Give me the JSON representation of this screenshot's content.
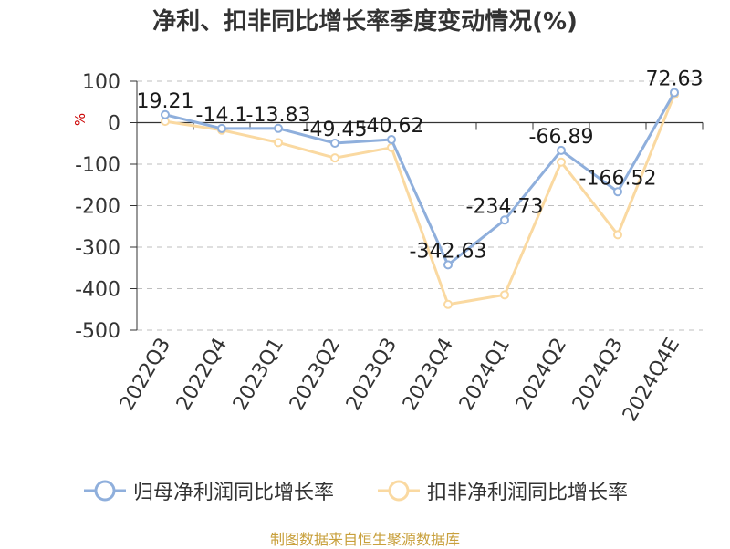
{
  "title": "净利、扣非同比增长率季度变动情况(%)",
  "source_text": "制图数据来自恒生聚源数据库",
  "colors": {
    "series1": "#8fafdc",
    "series2": "#fad9a1",
    "grid": "#bfbfbf",
    "axis": "#333333",
    "unit": "#cc0000"
  },
  "chart_data": {
    "type": "line",
    "title": "净利、扣非同比增长率季度变动情况(%)",
    "ylabel": "%",
    "xlabel": "",
    "ylim": [
      -500,
      100
    ],
    "yticks": [
      100,
      0,
      -100,
      -200,
      -300,
      -400,
      -500
    ],
    "grid": true,
    "legend_position": "bottom",
    "categories": [
      "2022Q3",
      "2022Q4",
      "2023Q1",
      "2023Q2",
      "2023Q3",
      "2023Q4",
      "2024Q1",
      "2024Q2",
      "2024Q3",
      "2024Q4E"
    ],
    "series": [
      {
        "name": "归母净利润同比增长率",
        "values": [
          19.21,
          -14.1,
          -13.83,
          -49.45,
          -40.62,
          -342.63,
          -234.73,
          -66.89,
          -166.52,
          72.63
        ],
        "labels": [
          "19.21",
          "-14.1",
          "-13.83",
          "-49.45",
          "-40.62",
          "-342.63",
          "-234.73",
          "-66.89",
          "-166.52",
          "72.63"
        ]
      },
      {
        "name": "扣非净利润同比增长率",
        "values": [
          3,
          -18,
          -48,
          -85,
          -60,
          -438,
          -415,
          -95,
          -270,
          68
        ]
      }
    ]
  }
}
